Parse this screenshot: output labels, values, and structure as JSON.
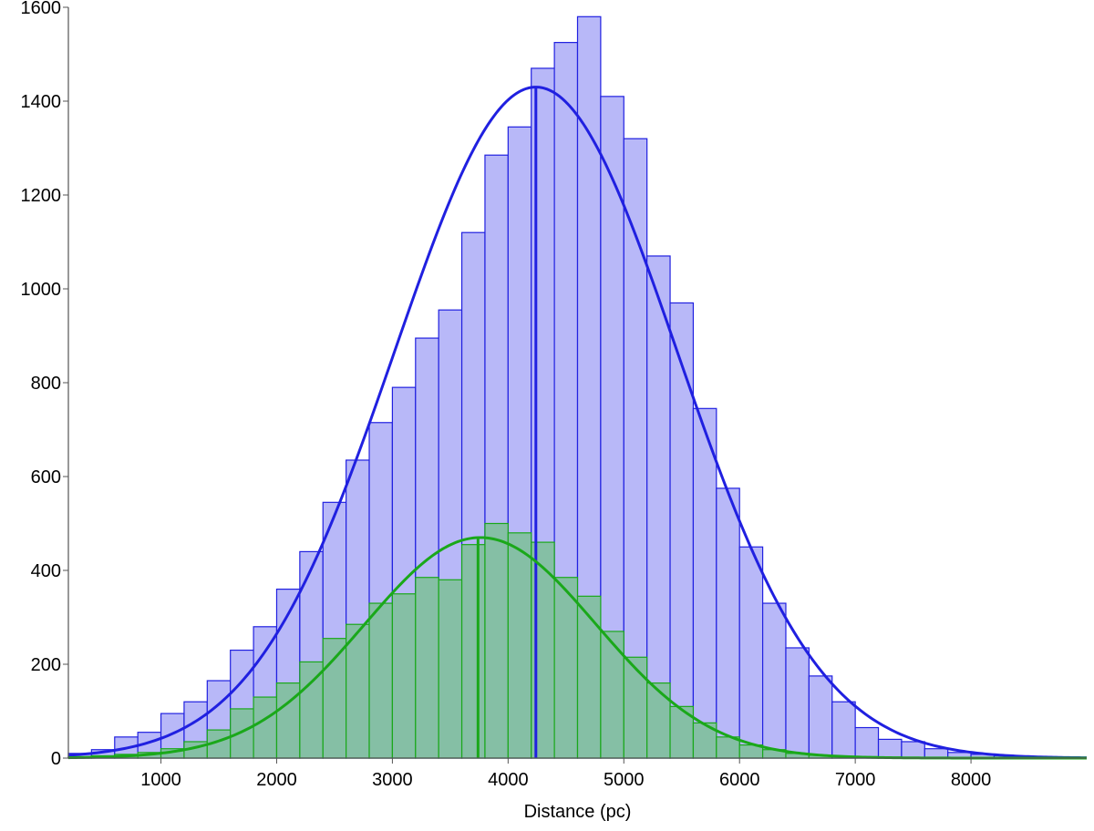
{
  "chart_data": {
    "type": "bar",
    "xlabel": "Distance (pc)",
    "ylabel": "",
    "xlim": [
      200,
      9000
    ],
    "ylim": [
      0,
      1600
    ],
    "x_ticks": [
      1000,
      2000,
      3000,
      4000,
      5000,
      6000,
      7000,
      8000
    ],
    "y_ticks": [
      0,
      200,
      400,
      600,
      800,
      1000,
      1200,
      1400,
      1600
    ],
    "bin_edges": [
      200,
      400,
      600,
      800,
      1000,
      1200,
      1400,
      1600,
      1800,
      2000,
      2200,
      2400,
      2600,
      2800,
      3000,
      3200,
      3400,
      3600,
      3800,
      4000,
      4200,
      4400,
      4600,
      4800,
      5000,
      5200,
      5400,
      5600,
      5800,
      6000,
      6200,
      6400,
      6600,
      6800,
      7000,
      7200,
      7400,
      7600,
      7800,
      8000,
      8200,
      8400,
      8600,
      8800
    ],
    "series": [
      {
        "color": "#2020e0",
        "fill": "#b8b8f8",
        "values": [
          10,
          18,
          45,
          55,
          95,
          120,
          165,
          230,
          280,
          360,
          440,
          545,
          635,
          715,
          790,
          895,
          955,
          1120,
          1285,
          1345,
          1470,
          1525,
          1580,
          1410,
          1320,
          1070,
          970,
          745,
          575,
          450,
          330,
          235,
          175,
          120,
          65,
          40,
          35,
          20,
          12,
          8,
          5,
          3,
          2
        ],
        "fit": {
          "kind": "gaussian",
          "peak": 1430,
          "mean": 4240,
          "sigma": 1220
        },
        "marker_x": 4240
      },
      {
        "color": "#1aa81a",
        "fill": "#82bfa0",
        "values": [
          3,
          5,
          8,
          12,
          20,
          35,
          60,
          105,
          130,
          160,
          205,
          255,
          285,
          330,
          350,
          385,
          380,
          455,
          500,
          480,
          460,
          385,
          345,
          270,
          215,
          160,
          110,
          75,
          45,
          28,
          18,
          10,
          6,
          4,
          3,
          2,
          1,
          1,
          1,
          0,
          0,
          0,
          0
        ],
        "fit": {
          "kind": "gaussian",
          "peak": 470,
          "mean": 3760,
          "sigma": 1000
        },
        "marker_x": 3740
      }
    ]
  }
}
